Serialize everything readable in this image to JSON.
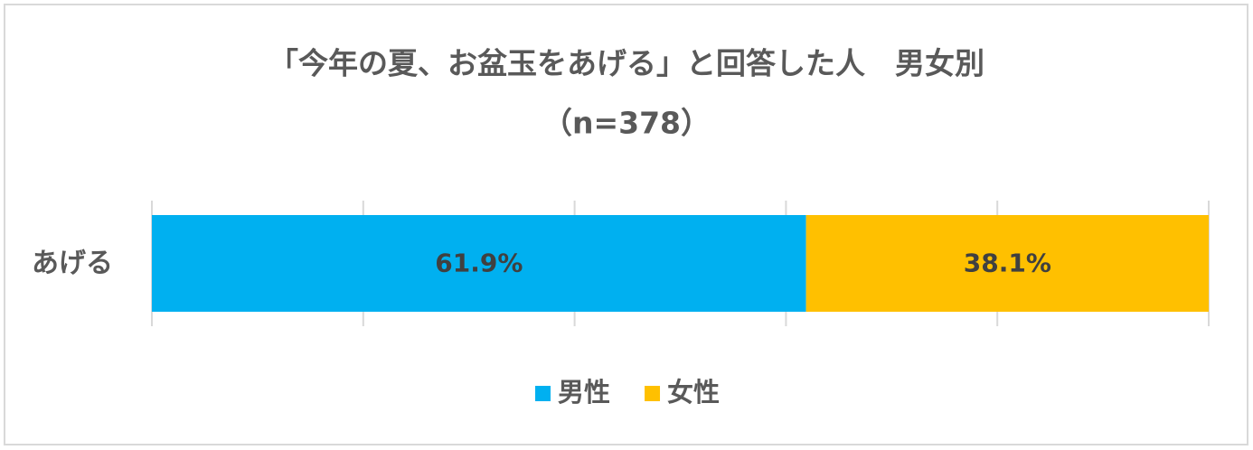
{
  "chart_data": {
    "type": "stacked-bar-horizontal",
    "title": "「今年の夏、お盆玉をあげる」と回答した人　男女別",
    "subtitle": "（n=378）",
    "categories": [
      "あげる"
    ],
    "series": [
      {
        "name": "男性",
        "color": "#00b0f0",
        "values": [
          61.9
        ],
        "value_labels": [
          "61.9%"
        ]
      },
      {
        "name": "女性",
        "color": "#ffc000",
        "values": [
          38.1
        ],
        "value_labels": [
          "38.1%"
        ]
      }
    ],
    "xlim": [
      0,
      100
    ],
    "xticks": [
      0,
      20,
      40,
      60,
      80,
      100
    ],
    "grid": true,
    "legend": "bottom"
  }
}
